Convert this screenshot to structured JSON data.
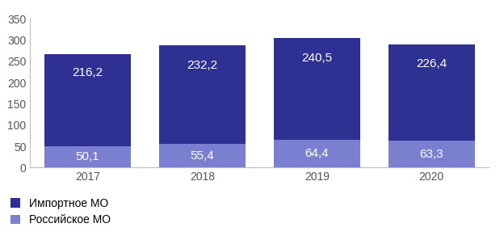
{
  "chart_data": {
    "type": "bar",
    "stacked": true,
    "data_labels": true,
    "categories": [
      "2017",
      "2018",
      "2019",
      "2020"
    ],
    "series": [
      {
        "name": "Российское МО",
        "color": "#7b7fd0",
        "values": [
          50.1,
          55.4,
          64.4,
          63.3
        ],
        "value_labels": [
          "50,1",
          "55,4",
          "64,4",
          "63,3"
        ]
      },
      {
        "name": "Импортное МО",
        "color": "#2e3192",
        "values": [
          216.2,
          232.2,
          240.5,
          226.4
        ],
        "value_labels": [
          "216,2",
          "232,2",
          "240,5",
          "226,4"
        ]
      }
    ],
    "ylim": [
      0,
      350
    ],
    "yticks": [
      0,
      50,
      100,
      150,
      200,
      250,
      300,
      350
    ],
    "grid": false,
    "legend": "lower left"
  }
}
